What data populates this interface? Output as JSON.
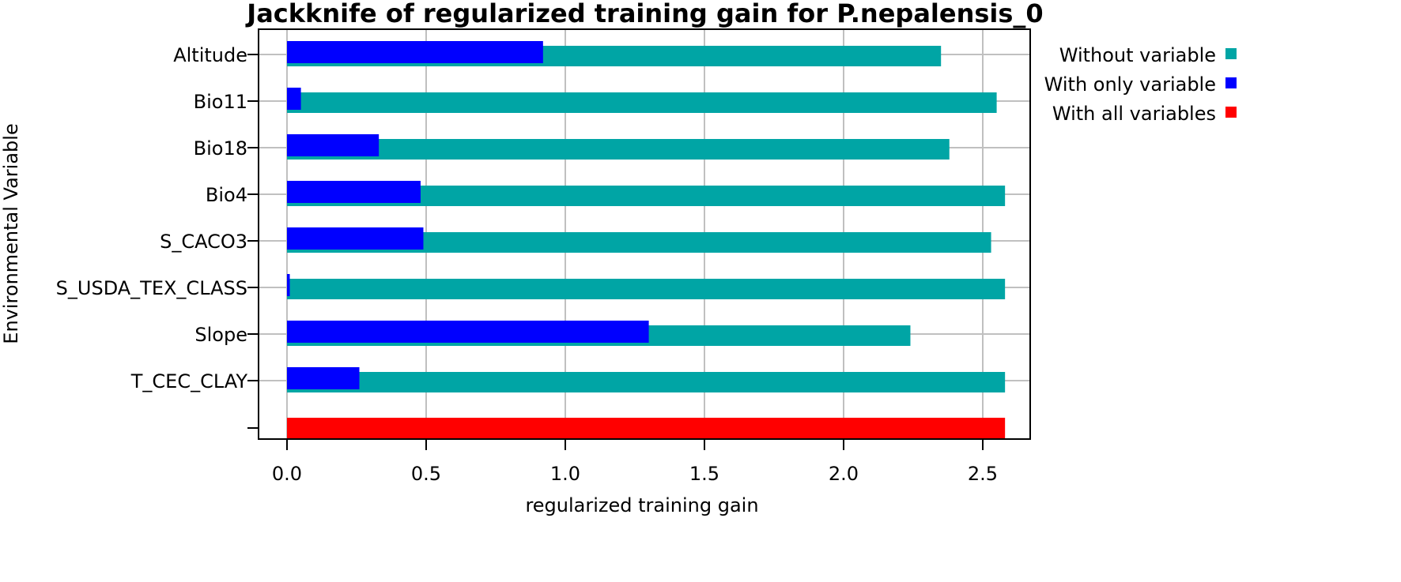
{
  "chart_data": {
    "type": "bar",
    "orientation": "horizontal",
    "title": "Jackknife of regularized training gain for P.nepalensis_0",
    "xlabel": "regularized training gain",
    "ylabel": "Environmental Variable",
    "xlim": [
      -0.1,
      2.6
    ],
    "xticks": [
      0.0,
      0.5,
      1.0,
      1.5,
      2.0,
      2.5
    ],
    "xtick_labels": [
      "0.0",
      "0.5",
      "1.0",
      "1.5",
      "2.0",
      "2.5"
    ],
    "grid": true,
    "legend_position": "right",
    "categories": [
      "Altitude",
      "Bio11",
      "Bio18",
      "Bio4",
      "S_CACO3",
      "S_USDA_TEX_CLASS",
      "Slope",
      "T_CEC_CLAY"
    ],
    "series": [
      {
        "name": "Without variable",
        "color": "#00a5a5",
        "values": [
          2.35,
          2.55,
          2.38,
          2.58,
          2.53,
          2.58,
          2.24,
          2.58
        ]
      },
      {
        "name": "With only variable",
        "color": "#0000ff",
        "values": [
          0.92,
          0.05,
          0.33,
          0.48,
          0.49,
          0.01,
          1.3,
          0.26
        ]
      },
      {
        "name": "With all variables",
        "color": "#ff0000",
        "value": 2.58
      }
    ]
  }
}
